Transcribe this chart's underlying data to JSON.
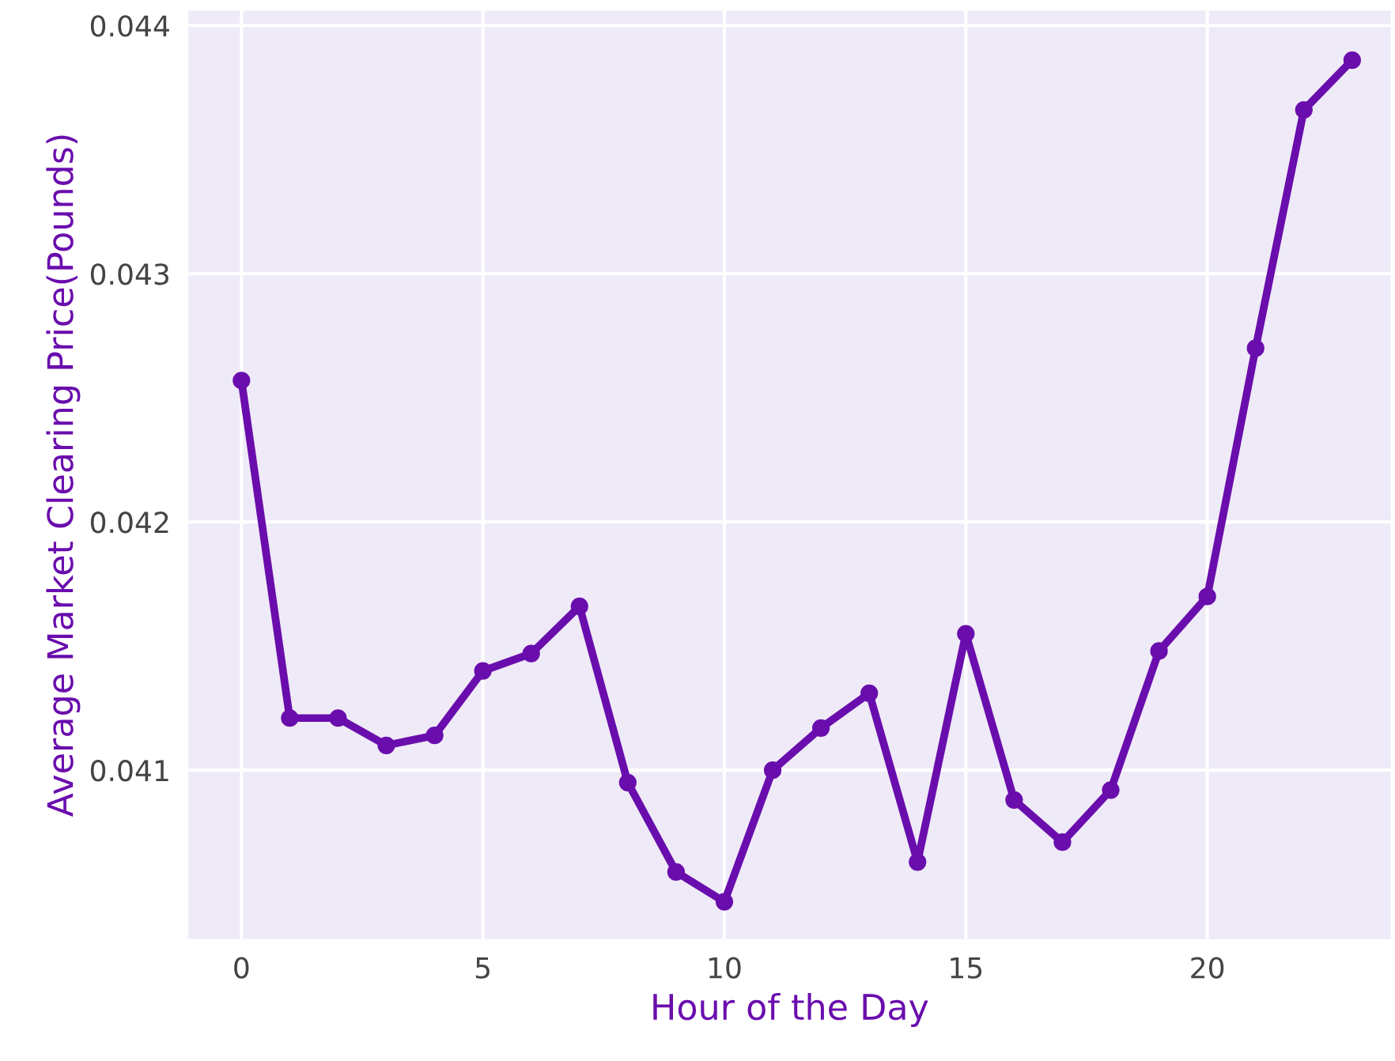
{
  "chart_data": {
    "type": "line",
    "xlabel": "Hour of the Day",
    "ylabel": "Average Market Clearing Price(Pounds)",
    "x": [
      0,
      1,
      2,
      3,
      4,
      5,
      6,
      7,
      8,
      9,
      10,
      11,
      12,
      13,
      14,
      15,
      16,
      17,
      18,
      19,
      20,
      21,
      22,
      23
    ],
    "series": [
      {
        "color": "#6a0dad",
        "values": [
          0.04257,
          0.04121,
          0.04121,
          0.0411,
          0.04114,
          0.0414,
          0.04147,
          0.04166,
          0.04095,
          0.04059,
          0.04047,
          0.041,
          0.04117,
          0.04131,
          0.04063,
          0.04155,
          0.04088,
          0.04071,
          0.04092,
          0.04148,
          0.0417,
          0.0427,
          0.04366,
          0.04386
        ]
      }
    ],
    "xlim": [
      -1.1,
      23.8
    ],
    "ylim": [
      0.04032,
      0.04406
    ],
    "xticks": [
      0,
      5,
      10,
      15,
      20
    ],
    "yticks": [
      0.041,
      0.042,
      0.043,
      0.044
    ],
    "grid": true,
    "marker": "circle",
    "line_style": "solid",
    "legend": false
  }
}
